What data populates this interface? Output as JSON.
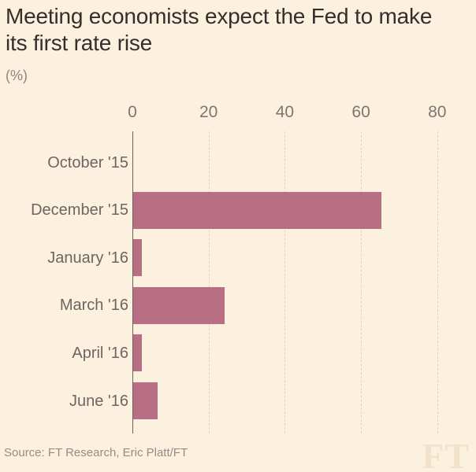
{
  "header": {
    "title": "Meeting economists expect the Fed to make its first rate rise",
    "subtitle": "(%)"
  },
  "footer": {
    "source": "Source: FT Research, Eric Platt/FT",
    "logo": "FT"
  },
  "chart_data": {
    "type": "bar",
    "orientation": "horizontal",
    "title": "Meeting economists expect the Fed to make its first rate rise",
    "xlabel": "(%)",
    "ylabel": "",
    "categories": [
      "October '15",
      "December '15",
      "January '16",
      "March '16",
      "April '16",
      "June '16"
    ],
    "values": [
      0,
      65.2,
      2.2,
      23.9,
      2.2,
      6.5
    ],
    "xticks": [
      0,
      20,
      40,
      60,
      80
    ],
    "xlim": [
      0,
      90
    ],
    "grid": "vertical-dashed",
    "legend": "none",
    "bar_color": "#b96f83",
    "axis_line_color": "#6b6159",
    "background_color": "#fcf0df"
  }
}
